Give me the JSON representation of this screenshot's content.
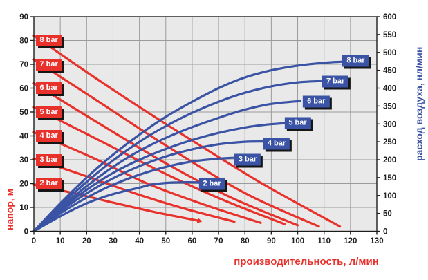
{
  "colors": {
    "red": "#e8312b",
    "blue": "#3a53a4",
    "grid": "#9b9b9b",
    "frame": "#1d1d1b",
    "plot_bg": "#e9e9e9",
    "tick_text": "#1d1d1b"
  },
  "axes": {
    "x": {
      "title": "производительность, л/мин",
      "ticks": [
        0,
        10,
        20,
        30,
        40,
        50,
        60,
        70,
        80,
        90,
        100,
        110,
        120,
        130
      ],
      "range": [
        0,
        130
      ]
    },
    "left": {
      "title": "напор, м",
      "ticks": [
        0,
        10,
        20,
        30,
        40,
        50,
        60,
        70,
        80,
        90
      ],
      "range": [
        0,
        90
      ]
    },
    "right": {
      "title": "расход воздуха, нл/мин",
      "ticks": [
        0,
        50,
        100,
        150,
        200,
        250,
        300,
        350,
        400,
        450,
        500,
        550,
        600
      ],
      "range": [
        0,
        600
      ]
    }
  },
  "chart_data": {
    "type": "line",
    "title": "",
    "xlabel": "производительность, л/мин",
    "ylabel_left": "напор, м",
    "ylabel_right": "расход воздуха, нл/мин",
    "x_range": [
      0,
      130
    ],
    "left_range": [
      0,
      90
    ],
    "right_range": [
      0,
      600
    ],
    "grid": true,
    "head_curves_red": [
      {
        "name": "2 bar",
        "axis": "left",
        "arrow": true,
        "points": [
          [
            0,
            19.5
          ],
          [
            15,
            16
          ],
          [
            30,
            12
          ],
          [
            46,
            8
          ],
          [
            62,
            4.5
          ]
        ],
        "label": {
          "text": "2 bar",
          "y": 20
        }
      },
      {
        "name": "3 bar",
        "axis": "left",
        "points": [
          [
            0,
            30.5
          ],
          [
            20,
            23
          ],
          [
            38,
            16
          ],
          [
            57,
            9.5
          ],
          [
            76,
            4
          ]
        ],
        "label": {
          "text": "3 bar",
          "y": 30
        }
      },
      {
        "name": "4 bar",
        "axis": "left",
        "points": [
          [
            0,
            41.5
          ],
          [
            22,
            31
          ],
          [
            43,
            20
          ],
          [
            65,
            11
          ],
          [
            86,
            3.5
          ]
        ],
        "label": {
          "text": "4 bar",
          "y": 40
        }
      },
      {
        "name": "5 bar",
        "axis": "left",
        "points": [
          [
            0,
            52
          ],
          [
            25,
            38
          ],
          [
            50,
            24
          ],
          [
            72,
            13
          ],
          [
            95,
            3
          ]
        ],
        "label": {
          "text": "5 bar",
          "y": 50
        }
      },
      {
        "name": "6 bar",
        "axis": "left",
        "points": [
          [
            0,
            62
          ],
          [
            25,
            45
          ],
          [
            50,
            28.5
          ],
          [
            75,
            14
          ],
          [
            100,
            2.5
          ]
        ],
        "label": {
          "text": "6 bar",
          "y": 60
        }
      },
      {
        "name": "7 bar",
        "axis": "left",
        "points": [
          [
            0,
            72
          ],
          [
            25,
            54
          ],
          [
            50,
            36
          ],
          [
            80,
            16
          ],
          [
            108,
            2
          ]
        ],
        "label": {
          "text": "7 bar",
          "y": 70
        }
      },
      {
        "name": "8 bar",
        "axis": "left",
        "points": [
          [
            0,
            82
          ],
          [
            25,
            63
          ],
          [
            50,
            45
          ],
          [
            85,
            21
          ],
          [
            116,
            2
          ]
        ],
        "label": {
          "text": "8 bar",
          "y": 80
        }
      }
    ],
    "air_curves_blue": [
      {
        "name": "2 bar",
        "axis": "right",
        "points": [
          [
            0,
            0
          ],
          [
            10,
            42
          ],
          [
            20,
            78
          ],
          [
            30,
            104
          ],
          [
            40,
            122
          ],
          [
            45,
            131
          ],
          [
            50,
            135
          ],
          [
            58,
            137
          ],
          [
            66,
            136
          ]
        ],
        "label": {
          "text": "2 bar",
          "x": 67.5,
          "v": 133
        }
      },
      {
        "name": "3 bar",
        "axis": "right",
        "points": [
          [
            0,
            0
          ],
          [
            10,
            50
          ],
          [
            20,
            94
          ],
          [
            30,
            130
          ],
          [
            40,
            158
          ],
          [
            50,
            180
          ],
          [
            60,
            195
          ],
          [
            70,
            203
          ],
          [
            78,
            206
          ]
        ],
        "label": {
          "text": "3 bar",
          "x": 81,
          "v": 200
        }
      },
      {
        "name": "4 bar",
        "axis": "right",
        "points": [
          [
            0,
            0
          ],
          [
            10,
            56
          ],
          [
            20,
            106
          ],
          [
            30,
            148
          ],
          [
            40,
            182
          ],
          [
            50,
            209
          ],
          [
            60,
            229
          ],
          [
            70,
            243
          ],
          [
            80,
            250
          ],
          [
            88,
            251
          ]
        ],
        "label": {
          "text": "4 bar",
          "x": 92,
          "v": 245
        }
      },
      {
        "name": "5 bar",
        "axis": "right",
        "points": [
          [
            0,
            0
          ],
          [
            10,
            61
          ],
          [
            20,
            116
          ],
          [
            30,
            163
          ],
          [
            40,
            200
          ],
          [
            50,
            230
          ],
          [
            60,
            255
          ],
          [
            70,
            275
          ],
          [
            80,
            290
          ],
          [
            88,
            298
          ],
          [
            95,
            302
          ]
        ],
        "label": {
          "text": "5 bar",
          "x": 100,
          "v": 303
        }
      },
      {
        "name": "6 bar",
        "axis": "right",
        "points": [
          [
            0,
            0
          ],
          [
            10,
            66
          ],
          [
            20,
            126
          ],
          [
            30,
            180
          ],
          [
            40,
            225
          ],
          [
            50,
            261
          ],
          [
            60,
            291
          ],
          [
            70,
            317
          ],
          [
            80,
            340
          ],
          [
            90,
            356
          ],
          [
            101,
            364
          ]
        ],
        "label": {
          "text": "6 bar",
          "x": 107,
          "v": 363
        }
      },
      {
        "name": "7 bar",
        "axis": "right",
        "points": [
          [
            0,
            0
          ],
          [
            10,
            72
          ],
          [
            20,
            138
          ],
          [
            30,
            198
          ],
          [
            40,
            250
          ],
          [
            50,
            294
          ],
          [
            60,
            331
          ],
          [
            70,
            362
          ],
          [
            80,
            387
          ],
          [
            90,
            405
          ],
          [
            100,
            416
          ],
          [
            109,
            420
          ]
        ],
        "label": {
          "text": "7 bar",
          "x": 114.3,
          "v": 419
        }
      },
      {
        "name": "8 bar",
        "axis": "right",
        "points": [
          [
            0,
            0
          ],
          [
            10,
            78
          ],
          [
            20,
            150
          ],
          [
            30,
            214
          ],
          [
            40,
            270
          ],
          [
            50,
            320
          ],
          [
            60,
            362
          ],
          [
            70,
            400
          ],
          [
            80,
            430
          ],
          [
            90,
            450
          ],
          [
            100,
            463
          ],
          [
            110,
            471
          ],
          [
            117,
            474
          ]
        ],
        "label": {
          "text": "8 bar",
          "x": 122,
          "v": 477
        }
      }
    ]
  }
}
